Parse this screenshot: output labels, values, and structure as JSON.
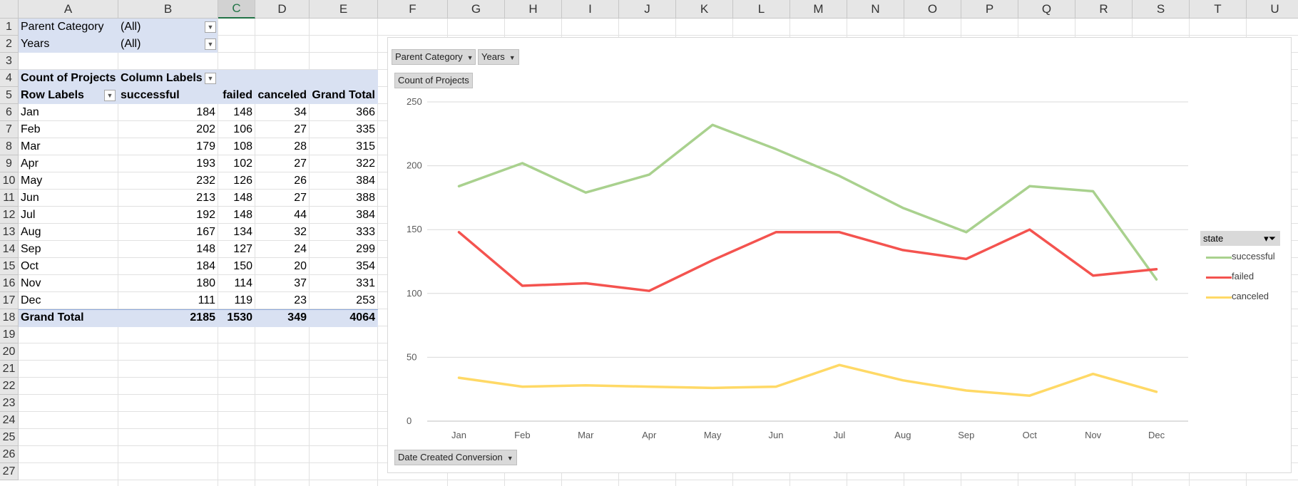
{
  "columns": [
    "A",
    "B",
    "C",
    "D",
    "E",
    "F",
    "G",
    "H",
    "I",
    "J",
    "K",
    "L",
    "M",
    "N",
    "O",
    "P",
    "Q",
    "R",
    "S",
    "T",
    "U"
  ],
  "selected_column": "C",
  "rows": [
    "1",
    "2",
    "3",
    "4",
    "5",
    "6",
    "7",
    "8",
    "9",
    "10",
    "11",
    "12",
    "13",
    "14",
    "15",
    "16",
    "17",
    "18",
    "19",
    "20",
    "21",
    "22",
    "23",
    "24",
    "25",
    "26",
    "27"
  ],
  "filters": [
    {
      "label": "Parent Category",
      "value": "(All)"
    },
    {
      "label": "Years",
      "value": "(All)"
    }
  ],
  "pivot": {
    "corner_label": "Count of Projects",
    "column_labels": "Column Labels",
    "row_labels": "Row Labels",
    "headers": [
      "successful",
      "failed",
      "canceled",
      "Grand Total"
    ],
    "rows": [
      {
        "label": "Jan",
        "values": [
          "184",
          "148",
          "34",
          "366"
        ]
      },
      {
        "label": "Feb",
        "values": [
          "202",
          "106",
          "27",
          "335"
        ]
      },
      {
        "label": "Mar",
        "values": [
          "179",
          "108",
          "28",
          "315"
        ]
      },
      {
        "label": "Apr",
        "values": [
          "193",
          "102",
          "27",
          "322"
        ]
      },
      {
        "label": "May",
        "values": [
          "232",
          "126",
          "26",
          "384"
        ]
      },
      {
        "label": "Jun",
        "values": [
          "213",
          "148",
          "27",
          "388"
        ]
      },
      {
        "label": "Jul",
        "values": [
          "192",
          "148",
          "44",
          "384"
        ]
      },
      {
        "label": "Aug",
        "values": [
          "167",
          "134",
          "32",
          "333"
        ]
      },
      {
        "label": "Sep",
        "values": [
          "148",
          "127",
          "24",
          "299"
        ]
      },
      {
        "label": "Oct",
        "values": [
          "184",
          "150",
          "20",
          "354"
        ]
      },
      {
        "label": "Nov",
        "values": [
          "180",
          "114",
          "37",
          "331"
        ]
      },
      {
        "label": "Dec",
        "values": [
          "111",
          "119",
          "23",
          "253"
        ]
      }
    ],
    "grand_total": {
      "label": "Grand Total",
      "values": [
        "2185",
        "1530",
        "349",
        "4064"
      ]
    }
  },
  "chart_buttons": {
    "parent_category": "Parent Category",
    "years": "Years",
    "value_field": "Count of Projects",
    "axis_field": "Date Created Conversion"
  },
  "legend_title": "state",
  "chart_data": {
    "type": "line",
    "categories": [
      "Jan",
      "Feb",
      "Mar",
      "Apr",
      "May",
      "Jun",
      "Jul",
      "Aug",
      "Sep",
      "Oct",
      "Nov",
      "Dec"
    ],
    "series": [
      {
        "name": "successful",
        "color": "#a9d18e",
        "values": [
          184,
          202,
          179,
          193,
          232,
          213,
          192,
          167,
          148,
          184,
          180,
          111
        ]
      },
      {
        "name": "failed",
        "color": "#f4534f",
        "values": [
          148,
          106,
          108,
          102,
          126,
          148,
          148,
          134,
          127,
          150,
          114,
          119
        ]
      },
      {
        "name": "canceled",
        "color": "#ffd966",
        "values": [
          34,
          27,
          28,
          27,
          26,
          27,
          44,
          32,
          24,
          20,
          37,
          23
        ]
      }
    ],
    "ylim": [
      0,
      250
    ],
    "yticks": [
      0,
      50,
      100,
      150,
      200,
      250
    ],
    "grid": true,
    "legend": "right"
  }
}
